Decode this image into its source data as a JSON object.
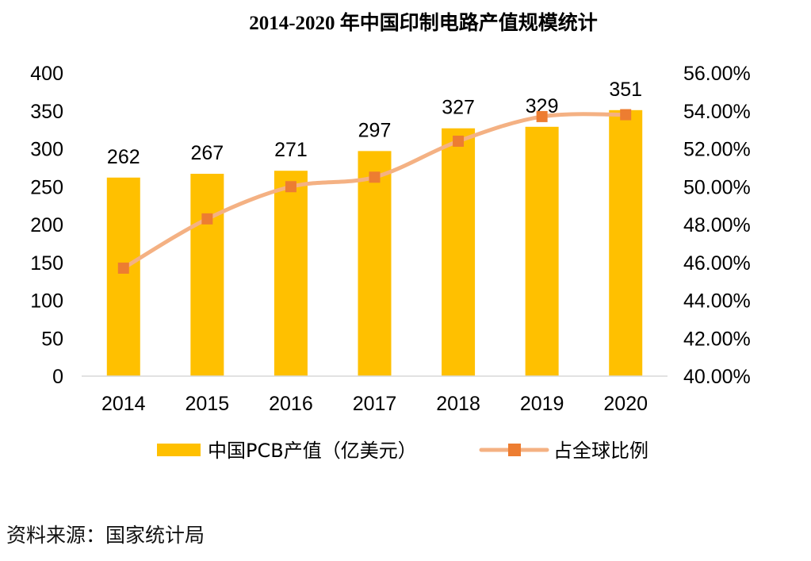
{
  "chart_data": {
    "type": "bar",
    "title": "2014-2020 年中国印制电路产值规模统计",
    "categories": [
      "2014",
      "2015",
      "2016",
      "2017",
      "2018",
      "2019",
      "2020"
    ],
    "series": [
      {
        "name": "中国PCB产值（亿美元）",
        "type": "bar",
        "axis": "left",
        "values": [
          262,
          267,
          271,
          297,
          327,
          329,
          351
        ],
        "labels": [
          "262",
          "267",
          "271",
          "297",
          "327",
          "329",
          "351"
        ],
        "color": "#FFC000"
      },
      {
        "name": "占全球比例",
        "type": "line",
        "axis": "right",
        "values": [
          45.7,
          48.3,
          50.0,
          50.5,
          52.4,
          53.7,
          53.8
        ],
        "color": "#ED7D31",
        "line_color": "#F4B183"
      }
    ],
    "ylim_left": [
      0,
      400
    ],
    "ylim_right": [
      40,
      56
    ],
    "yticks_left": [
      "0",
      "50",
      "100",
      "150",
      "200",
      "250",
      "300",
      "350",
      "400"
    ],
    "yticks_right": [
      "40.00%",
      "42.00%",
      "44.00%",
      "46.00%",
      "48.00%",
      "50.00%",
      "52.00%",
      "54.00%",
      "56.00%"
    ],
    "grid": false,
    "legend_position": "bottom"
  },
  "source_text": "资料来源：国家统计局"
}
